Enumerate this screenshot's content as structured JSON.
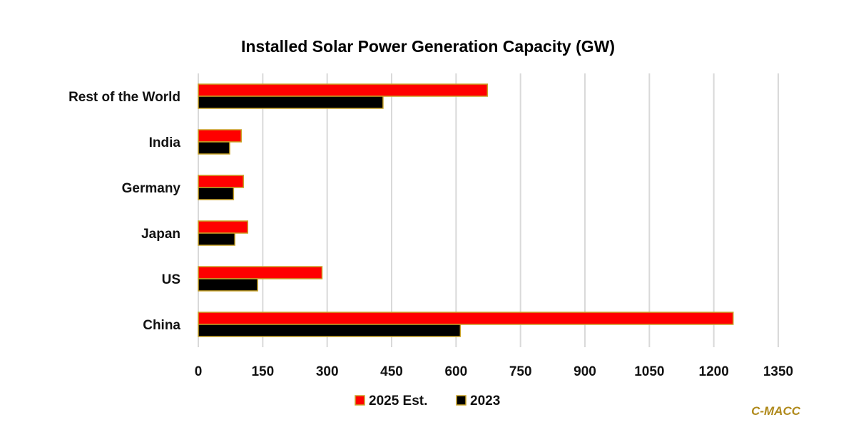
{
  "chart_data": {
    "type": "bar",
    "orientation": "horizontal",
    "title": "Installed Solar Power Generation Capacity (GW)",
    "xlabel": "",
    "ylabel": "",
    "categories": [
      "China",
      "US",
      "Japan",
      "Germany",
      "India",
      "Rest of the World"
    ],
    "series": [
      {
        "name": "2025 Est.",
        "color": "#ff0000",
        "values": [
          1245,
          288,
          115,
          105,
          100,
          673
        ]
      },
      {
        "name": "2023",
        "color": "#000000",
        "values": [
          610,
          138,
          85,
          82,
          73,
          430
        ]
      }
    ],
    "bar_outline_color": "#c9a227",
    "xlim": [
      0,
      1350
    ],
    "xticks": [
      0,
      150,
      300,
      450,
      600,
      750,
      900,
      1050,
      1200,
      1350
    ],
    "xtick_labels": [
      "0",
      "150",
      "300",
      "450",
      "600",
      "750",
      "900",
      "1050",
      "1200",
      "1350"
    ],
    "grid": "vertical",
    "legend_position": "bottom"
  },
  "watermark": {
    "text": "C-MACC",
    "color": "#b08a1c"
  }
}
